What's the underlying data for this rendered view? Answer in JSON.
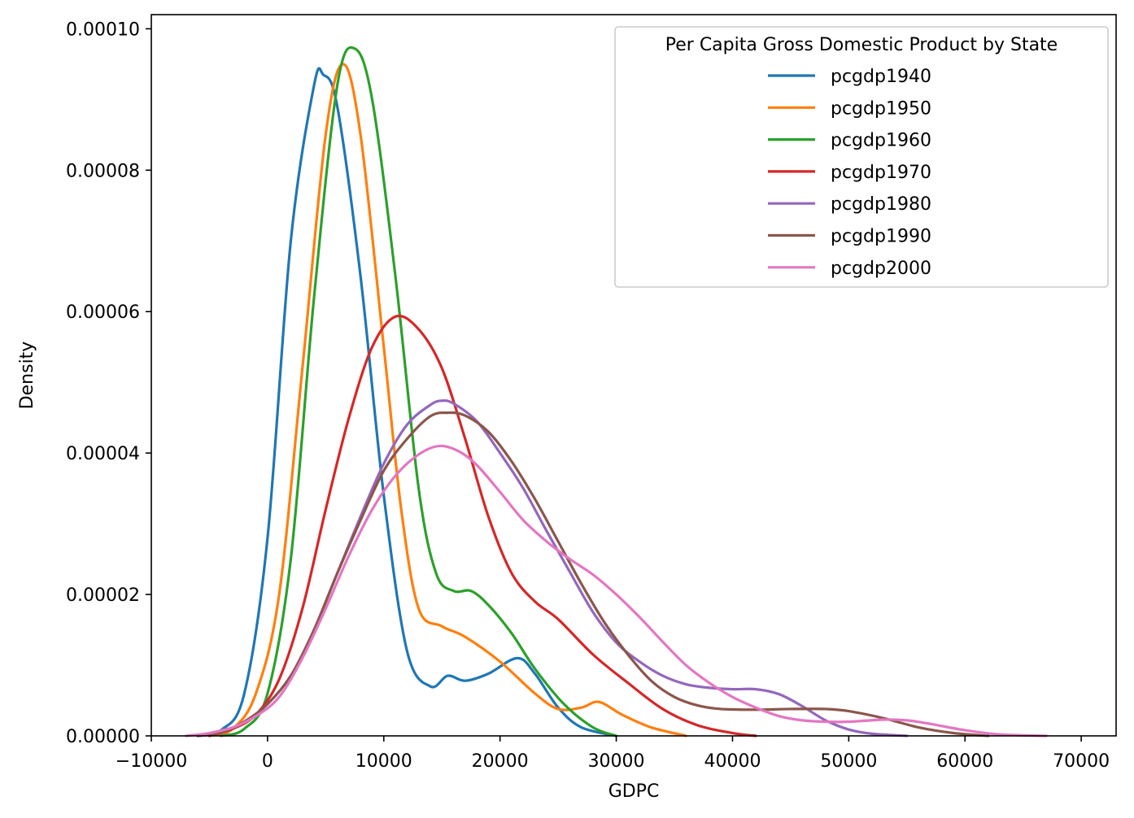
{
  "chart_data": {
    "type": "line",
    "xlabel": "GDPC",
    "ylabel": "Density",
    "xlim": [
      -10000,
      73000
    ],
    "ylim": [
      0,
      0.000102
    ],
    "x_ticks": [
      -10000,
      0,
      10000,
      20000,
      30000,
      40000,
      50000,
      60000,
      70000
    ],
    "x_tick_labels": [
      "−10000",
      "0",
      "10000",
      "20000",
      "30000",
      "40000",
      "50000",
      "60000",
      "70000"
    ],
    "y_ticks": [
      0,
      2e-05,
      4e-05,
      6e-05,
      8e-05,
      0.0001
    ],
    "y_tick_labels": [
      "0.00000",
      "0.00002",
      "0.00004",
      "0.00006",
      "0.00008",
      "0.00010"
    ],
    "grid": false,
    "legend": {
      "title": "Per Capita Gross Domestic Product by State",
      "placement": "top-right"
    },
    "series": [
      {
        "name": "pcgdp1940",
        "color": "#1f77b4",
        "points": [
          [
            -6000,
            0
          ],
          [
            -4000,
            8e-07
          ],
          [
            -2000,
            6e-06
          ],
          [
            0,
            2.8e-05
          ],
          [
            2000,
            7e-05
          ],
          [
            4000,
            9.2e-05
          ],
          [
            4800,
            9.35e-05
          ],
          [
            6000,
            8.9e-05
          ],
          [
            8000,
            6.5e-05
          ],
          [
            10000,
            3.4e-05
          ],
          [
            12000,
            1.2e-05
          ],
          [
            14000,
            7e-06
          ],
          [
            15500,
            8.5e-06
          ],
          [
            17000,
            7.8e-06
          ],
          [
            19000,
            8.8e-06
          ],
          [
            21500,
            1.1e-05
          ],
          [
            23000,
            8.8e-06
          ],
          [
            25000,
            4e-06
          ],
          [
            27000,
            1.2e-06
          ],
          [
            30000,
            0
          ]
        ]
      },
      {
        "name": "pcgdp1950",
        "color": "#ff7f0e",
        "points": [
          [
            -5000,
            0
          ],
          [
            -3000,
            1e-06
          ],
          [
            -1000,
            6e-06
          ],
          [
            1000,
            2e-05
          ],
          [
            3000,
            5.2e-05
          ],
          [
            5000,
            8.5e-05
          ],
          [
            6500,
            9.5e-05
          ],
          [
            8000,
            8.5e-05
          ],
          [
            10000,
            5.5e-05
          ],
          [
            11500,
            3.2e-05
          ],
          [
            13000,
            1.8e-05
          ],
          [
            15000,
            1.55e-05
          ],
          [
            17000,
            1.4e-05
          ],
          [
            20000,
            1.05e-05
          ],
          [
            23000,
            6e-06
          ],
          [
            25000,
            3.8e-06
          ],
          [
            27000,
            4e-06
          ],
          [
            28500,
            4.8e-06
          ],
          [
            30500,
            3e-06
          ],
          [
            33000,
            1.2e-06
          ],
          [
            36000,
            0
          ]
        ]
      },
      {
        "name": "pcgdp1960",
        "color": "#2ca02c",
        "points": [
          [
            -4000,
            0
          ],
          [
            -2000,
            1e-06
          ],
          [
            0,
            6e-06
          ],
          [
            2000,
            2.5e-05
          ],
          [
            4000,
            6.2e-05
          ],
          [
            6000,
            9.2e-05
          ],
          [
            7500,
            9.72e-05
          ],
          [
            9000,
            9e-05
          ],
          [
            11000,
            6.5e-05
          ],
          [
            13000,
            3.5e-05
          ],
          [
            14500,
            2.3e-05
          ],
          [
            16000,
            2.05e-05
          ],
          [
            17500,
            2.05e-05
          ],
          [
            19000,
            1.85e-05
          ],
          [
            21000,
            1.45e-05
          ],
          [
            23000,
            9.5e-06
          ],
          [
            25500,
            4.5e-06
          ],
          [
            28000,
            1.2e-06
          ],
          [
            30000,
            0
          ]
        ]
      },
      {
        "name": "pcgdp1970",
        "color": "#d62728",
        "points": [
          [
            -5000,
            0
          ],
          [
            -3000,
            1e-06
          ],
          [
            -1000,
            3e-06
          ],
          [
            1000,
            8e-06
          ],
          [
            3000,
            1.8e-05
          ],
          [
            5000,
            3.2e-05
          ],
          [
            7000,
            4.5e-05
          ],
          [
            9000,
            5.5e-05
          ],
          [
            11000,
            5.93e-05
          ],
          [
            13000,
            5.75e-05
          ],
          [
            15000,
            5.2e-05
          ],
          [
            17000,
            4.2e-05
          ],
          [
            19000,
            3.1e-05
          ],
          [
            21000,
            2.3e-05
          ],
          [
            23000,
            1.9e-05
          ],
          [
            25000,
            1.65e-05
          ],
          [
            28000,
            1.15e-05
          ],
          [
            31000,
            7.5e-06
          ],
          [
            34000,
            3.8e-06
          ],
          [
            37000,
            1.5e-06
          ],
          [
            40000,
            4e-07
          ],
          [
            42000,
            0
          ]
        ]
      },
      {
        "name": "pcgdp1980",
        "color": "#9467bd",
        "points": [
          [
            -6000,
            0
          ],
          [
            -4000,
            5e-07
          ],
          [
            -2000,
            2e-06
          ],
          [
            0,
            4.5e-06
          ],
          [
            2000,
            8.5e-06
          ],
          [
            4000,
            1.5e-05
          ],
          [
            6000,
            2.3e-05
          ],
          [
            8000,
            3.1e-05
          ],
          [
            10000,
            3.85e-05
          ],
          [
            12000,
            4.4e-05
          ],
          [
            14000,
            4.68e-05
          ],
          [
            15000,
            4.74e-05
          ],
          [
            16000,
            4.7e-05
          ],
          [
            18000,
            4.45e-05
          ],
          [
            20000,
            4e-05
          ],
          [
            22000,
            3.5e-05
          ],
          [
            24000,
            2.9e-05
          ],
          [
            26000,
            2.32e-05
          ],
          [
            28000,
            1.75e-05
          ],
          [
            30000,
            1.32e-05
          ],
          [
            32000,
            1.05e-05
          ],
          [
            34000,
            8.5e-06
          ],
          [
            36000,
            7.3e-06
          ],
          [
            38000,
            6.8e-06
          ],
          [
            40000,
            6.6e-06
          ],
          [
            42000,
            6.6e-06
          ],
          [
            44000,
            5.9e-06
          ],
          [
            46000,
            4.2e-06
          ],
          [
            48000,
            2.2e-06
          ],
          [
            50000,
            9e-07
          ],
          [
            52000,
            3e-07
          ],
          [
            55000,
            0
          ]
        ]
      },
      {
        "name": "pcgdp1990",
        "color": "#8c564b",
        "points": [
          [
            -6000,
            0
          ],
          [
            -4000,
            5e-07
          ],
          [
            -2000,
            2e-06
          ],
          [
            0,
            4.5e-06
          ],
          [
            2000,
            8.5e-06
          ],
          [
            4000,
            1.5e-05
          ],
          [
            6000,
            2.3e-05
          ],
          [
            8000,
            3.05e-05
          ],
          [
            10000,
            3.75e-05
          ],
          [
            12000,
            4.2e-05
          ],
          [
            14000,
            4.52e-05
          ],
          [
            15500,
            4.57e-05
          ],
          [
            17000,
            4.53e-05
          ],
          [
            19000,
            4.3e-05
          ],
          [
            21000,
            3.88e-05
          ],
          [
            23000,
            3.35e-05
          ],
          [
            25000,
            2.75e-05
          ],
          [
            27000,
            2.15e-05
          ],
          [
            29000,
            1.6e-05
          ],
          [
            31000,
            1.15e-05
          ],
          [
            33000,
            7.8e-06
          ],
          [
            35000,
            5.5e-06
          ],
          [
            37000,
            4.3e-06
          ],
          [
            39000,
            3.8e-06
          ],
          [
            42000,
            3.7e-06
          ],
          [
            45000,
            3.8e-06
          ],
          [
            48000,
            3.8e-06
          ],
          [
            50000,
            3.5e-06
          ],
          [
            53000,
            2.5e-06
          ],
          [
            56000,
            1.2e-06
          ],
          [
            59000,
            4e-07
          ],
          [
            62000,
            0
          ]
        ]
      },
      {
        "name": "pcgdp2000",
        "color": "#e377c2",
        "points": [
          [
            -7000,
            0
          ],
          [
            -5000,
            4e-07
          ],
          [
            -3000,
            1.2e-06
          ],
          [
            -1000,
            2.8e-06
          ],
          [
            1000,
            5.5e-06
          ],
          [
            3000,
            1.1e-05
          ],
          [
            5000,
            1.8e-05
          ],
          [
            7000,
            2.55e-05
          ],
          [
            9000,
            3.2e-05
          ],
          [
            11000,
            3.68e-05
          ],
          [
            13000,
            3.98e-05
          ],
          [
            14800,
            4.1e-05
          ],
          [
            16500,
            4.02e-05
          ],
          [
            18000,
            3.83e-05
          ],
          [
            20000,
            3.45e-05
          ],
          [
            22000,
            3.05e-05
          ],
          [
            24000,
            2.75e-05
          ],
          [
            26000,
            2.5e-05
          ],
          [
            28000,
            2.28e-05
          ],
          [
            30000,
            2e-05
          ],
          [
            32000,
            1.68e-05
          ],
          [
            34000,
            1.33e-05
          ],
          [
            36000,
            1e-05
          ],
          [
            38000,
            7.5e-06
          ],
          [
            40000,
            5.5e-06
          ],
          [
            42000,
            4e-06
          ],
          [
            44000,
            2.8e-06
          ],
          [
            46000,
            2.2e-06
          ],
          [
            48000,
            2e-06
          ],
          [
            50000,
            2e-06
          ],
          [
            53000,
            2.3e-06
          ],
          [
            55000,
            2.2e-06
          ],
          [
            57000,
            1.7e-06
          ],
          [
            60000,
            8e-07
          ],
          [
            63000,
            2e-07
          ],
          [
            67000,
            0
          ]
        ]
      }
    ]
  }
}
